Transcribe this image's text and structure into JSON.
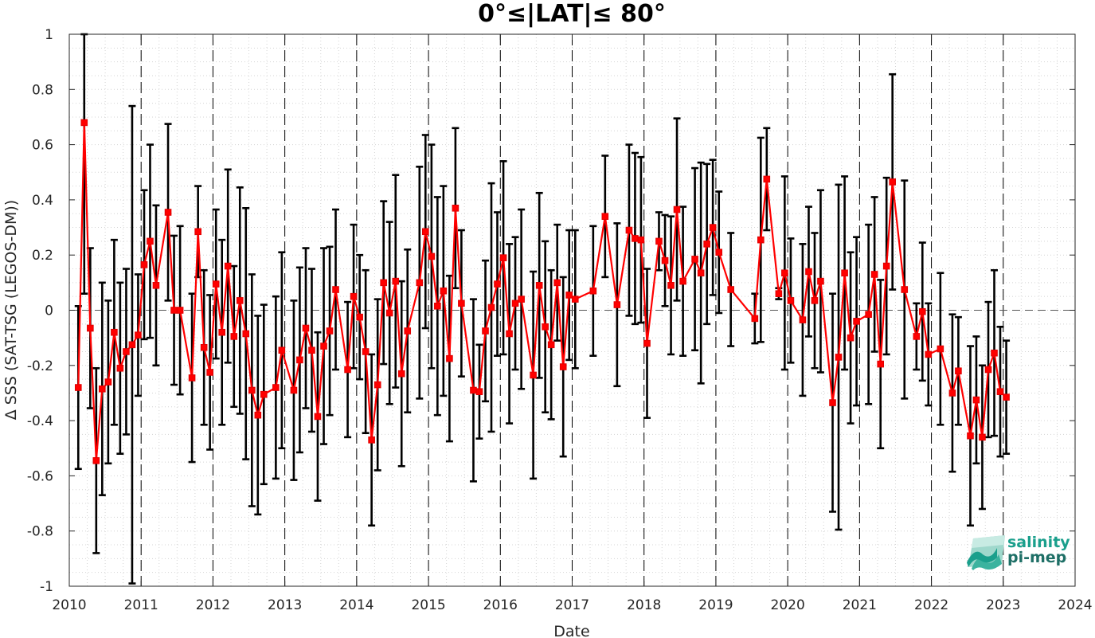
{
  "chart_data": {
    "type": "line",
    "title": "0°≤|LAT|≤ 80°",
    "xlabel": "Date",
    "ylabel": "Δ SSS (SAT-TSG (LEGOS-DM))",
    "xlim": [
      2010,
      2024
    ],
    "ylim": [
      -1,
      1
    ],
    "x_ticks": [
      "2010",
      "2011",
      "2012",
      "2013",
      "2014",
      "2015",
      "2016",
      "2017",
      "2018",
      "2019",
      "2020",
      "2021",
      "2022",
      "2023",
      "2024"
    ],
    "y_ticks": [
      "-1",
      "-0.8",
      "-0.6",
      "-0.4",
      "-0.2",
      "0",
      "0.2",
      "0.4",
      "0.6",
      "0.8",
      "1"
    ],
    "grid": "minor-dotted",
    "year_boundaries_dashed": true,
    "zero_line_dashed": true,
    "series": [
      {
        "color": "#ff0000",
        "errorbar_color": "#000000",
        "x": [
          2010.125,
          2010.208,
          2010.292,
          2010.375,
          2010.458,
          2010.542,
          2010.625,
          2010.708,
          2010.792,
          2010.875,
          2010.958,
          2011.042,
          2011.125,
          2011.208,
          2011.375,
          2011.458,
          2011.542,
          2011.708,
          2011.792,
          2011.875,
          2011.958,
          2012.042,
          2012.125,
          2012.208,
          2012.292,
          2012.375,
          2012.458,
          2012.542,
          2012.625,
          2012.708,
          2012.875,
          2012.958,
          2013.125,
          2013.208,
          2013.292,
          2013.375,
          2013.458,
          2013.542,
          2013.625,
          2013.708,
          2013.875,
          2013.958,
          2014.042,
          2014.125,
          2014.208,
          2014.292,
          2014.375,
          2014.458,
          2014.542,
          2014.625,
          2014.708,
          2014.875,
          2014.958,
          2015.042,
          2015.125,
          2015.208,
          2015.292,
          2015.375,
          2015.458,
          2015.625,
          2015.708,
          2015.792,
          2015.875,
          2015.958,
          2016.042,
          2016.125,
          2016.208,
          2016.292,
          2016.458,
          2016.542,
          2016.625,
          2016.708,
          2016.792,
          2016.875,
          2016.958,
          2017.042,
          2017.292,
          2017.458,
          2017.625,
          2017.792,
          2017.875,
          2017.958,
          2018.042,
          2018.208,
          2018.292,
          2018.375,
          2018.458,
          2018.542,
          2018.708,
          2018.792,
          2018.875,
          2018.958,
          2019.042,
          2019.208,
          2019.542,
          2019.625,
          2019.708,
          2019.875,
          2019.958,
          2020.042,
          2020.208,
          2020.292,
          2020.375,
          2020.458,
          2020.625,
          2020.708,
          2020.792,
          2020.875,
          2020.958,
          2021.125,
          2021.208,
          2021.292,
          2021.375,
          2021.458,
          2021.625,
          2021.792,
          2021.875,
          2021.958,
          2022.125,
          2022.292,
          2022.375,
          2022.542,
          2022.625,
          2022.708,
          2022.792,
          2022.875,
          2022.958,
          2023.042
        ],
        "y": [
          -0.28,
          0.68,
          -0.065,
          -0.545,
          -0.285,
          -0.26,
          -0.08,
          -0.21,
          -0.15,
          -0.125,
          -0.09,
          0.165,
          0.25,
          0.09,
          0.355,
          0,
          0,
          -0.245,
          0.285,
          -0.135,
          -0.225,
          0.095,
          -0.08,
          0.16,
          -0.095,
          0.035,
          -0.085,
          -0.29,
          -0.38,
          -0.305,
          -0.28,
          -0.145,
          -0.29,
          -0.18,
          -0.065,
          -0.145,
          -0.385,
          -0.13,
          -0.075,
          0.075,
          -0.215,
          0.05,
          -0.025,
          -0.15,
          -0.47,
          -0.27,
          0.1,
          -0.01,
          0.105,
          -0.23,
          -0.075,
          0.1,
          0.285,
          0.195,
          0.015,
          0.07,
          -0.175,
          0.37,
          0.025,
          -0.29,
          -0.295,
          -0.075,
          0.01,
          0.095,
          0.19,
          -0.085,
          0.025,
          0.04,
          -0.235,
          0.09,
          -0.06,
          -0.125,
          0.1,
          -0.205,
          0.055,
          0.04,
          0.07,
          0.34,
          0.02,
          0.29,
          0.26,
          0.255,
          -0.12,
          0.25,
          0.18,
          0.09,
          0.365,
          0.105,
          0.185,
          0.135,
          0.24,
          0.3,
          0.21,
          0.075,
          -0.03,
          0.255,
          0.475,
          0.06,
          0.135,
          0.035,
          -0.035,
          0.14,
          0.035,
          0.105,
          -0.335,
          -0.17,
          0.135,
          -0.1,
          -0.04,
          -0.015,
          0.13,
          -0.195,
          0.16,
          0.465,
          0.075,
          -0.095,
          -0.005,
          -0.16,
          -0.14,
          -0.3,
          -0.22,
          -0.455,
          -0.325,
          -0.46,
          -0.215,
          -0.155,
          -0.295,
          -0.315
        ],
        "err": [
          0.295,
          0.62,
          0.29,
          0.335,
          0.385,
          0.295,
          0.335,
          0.31,
          0.3,
          0.865,
          0.22,
          0.27,
          0.35,
          0.29,
          0.32,
          0.27,
          0.305,
          0.305,
          0.165,
          0.28,
          0.28,
          0.27,
          0.335,
          0.35,
          0.255,
          0.41,
          0.455,
          0.42,
          0.36,
          0.325,
          0.33,
          0.355,
          0.325,
          0.335,
          0.29,
          0.295,
          0.305,
          0.355,
          0.305,
          0.29,
          0.245,
          0.26,
          0.225,
          0.295,
          0.31,
          0.31,
          0.295,
          0.33,
          0.385,
          0.335,
          0.295,
          0.42,
          0.35,
          0.405,
          0.395,
          0.38,
          0.3,
          0.29,
          0.265,
          0.33,
          0.17,
          0.255,
          0.45,
          0.26,
          0.35,
          0.325,
          0.24,
          0.325,
          0.375,
          0.335,
          0.31,
          0.27,
          0.21,
          0.325,
          0.235,
          0.25,
          0.235,
          0.22,
          0.295,
          0.31,
          0.31,
          0.3,
          0.27,
          0.105,
          0.165,
          0.25,
          0.33,
          0.27,
          0.33,
          0.4,
          0.29,
          0.245,
          0.22,
          0.205,
          0.09,
          0.37,
          0.185,
          0.02,
          0.35,
          0.225,
          0.275,
          0.235,
          0.245,
          0.33,
          0.395,
          0.625,
          0.35,
          0.31,
          0.305,
          0.325,
          0.28,
          0.305,
          0.32,
          0.39,
          0.395,
          0.12,
          0.25,
          0.185,
          0.275,
          0.285,
          0.195,
          0.325,
          0.23,
          0.26,
          0.245,
          0.3,
          0.235,
          0.205
        ]
      }
    ],
    "logo": {
      "line1": "salinity",
      "line2": "pi-mep",
      "color1": "#1a9f8c",
      "color2": "#1e6f66"
    }
  }
}
